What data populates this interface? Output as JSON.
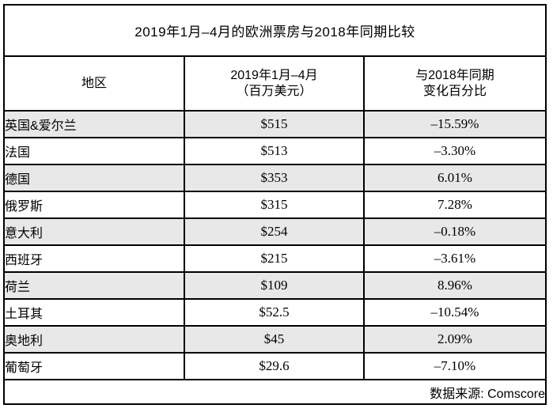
{
  "title": "2019年1月–4月的欧洲票房与2018年同期比较",
  "table": {
    "columns": [
      {
        "line1": "地区",
        "line2": ""
      },
      {
        "line1": "2019年1月–4月",
        "line2": "（百万美元）"
      },
      {
        "line1": "与2018年同期",
        "line2": "变化百分比"
      }
    ],
    "rows": [
      {
        "region": "英国&爱尔兰",
        "box_office": "$515",
        "change": "–15.59%"
      },
      {
        "region": "法国",
        "box_office": "$513",
        "change": "–3.30%"
      },
      {
        "region": "德国",
        "box_office": "$353",
        "change": "6.01%"
      },
      {
        "region": "俄罗斯",
        "box_office": "$315",
        "change": "7.28%"
      },
      {
        "region": "意大利",
        "box_office": "$254",
        "change": "–0.18%"
      },
      {
        "region": "西班牙",
        "box_office": "$215",
        "change": "–3.61%"
      },
      {
        "region": "荷兰",
        "box_office": "$109",
        "change": "8.96%"
      },
      {
        "region": "土耳其",
        "box_office": "$52.5",
        "change": "–10.54%"
      },
      {
        "region": "奥地利",
        "box_office": "$45",
        "change": "2.09%"
      },
      {
        "region": "葡萄牙",
        "box_office": "$29.6",
        "change": "–7.10%"
      }
    ]
  },
  "footer": {
    "source": "数据来源: Comscore"
  },
  "colors": {
    "stripe": "#e8e8e8",
    "border": "#000000",
    "background": "#ffffff",
    "text": "#000000"
  },
  "chart_data": {
    "type": "table",
    "title": "2019年1月–4月的欧洲票房与2018年同期比较",
    "columns": [
      "地区",
      "2019年1月–4月（百万美元）",
      "与2018年同期变化百分比"
    ],
    "regions": [
      "英国&爱尔兰",
      "法国",
      "德国",
      "俄罗斯",
      "意大利",
      "西班牙",
      "荷兰",
      "土耳其",
      "奥地利",
      "葡萄牙"
    ],
    "box_office_million_usd": [
      515,
      513,
      353,
      315,
      254,
      215,
      109,
      52.5,
      45,
      29.6
    ],
    "change_vs_2018_pct": [
      -15.59,
      -3.3,
      6.01,
      7.28,
      -0.18,
      -3.61,
      8.96,
      -10.54,
      2.09,
      -7.1
    ],
    "source": "数据来源: Comscore",
    "layout_hints": {
      "striped_rows": "odd rows gray",
      "grid": "all black borders"
    }
  }
}
